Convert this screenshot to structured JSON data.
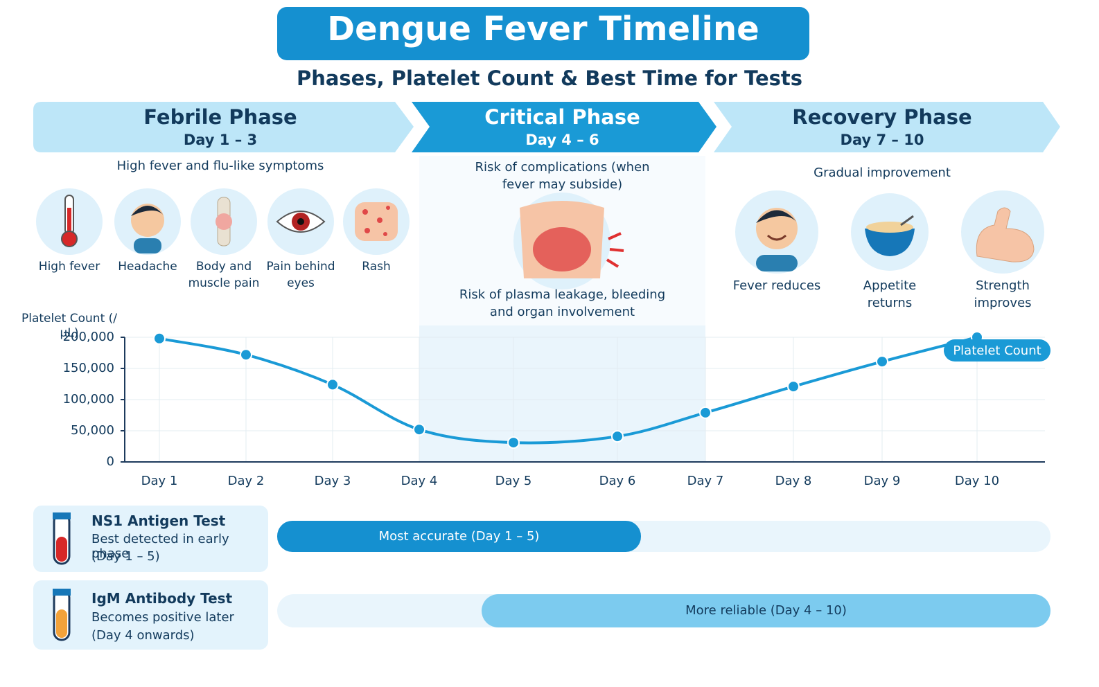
{
  "header": {
    "title": "Dengue Fever Timeline",
    "subtitle": "Phases, Platelet Count & Best Time for Tests"
  },
  "phases": [
    {
      "name": "Febrile Phase",
      "days": "Day 1 – 3",
      "description": "High fever and flu-like symptoms",
      "items": [
        "High fever",
        "Headache",
        "Body and muscle pain",
        "Pain behind eyes",
        "Rash"
      ]
    },
    {
      "name": "Critical Phase",
      "days": "Day 4 – 6",
      "description": "Risk of complications (when fever may subside)",
      "note": "Risk of plasma leakage, bleeding and organ involvement"
    },
    {
      "name": "Recovery Phase",
      "days": "Day 7 – 10",
      "description": "Gradual improvement",
      "items": [
        "Fever reduces",
        "Appetite returns",
        "Strength improves"
      ]
    }
  ],
  "chart_data": {
    "type": "line",
    "y_label": "Platelet Count (/µL)",
    "categories": [
      "Day 1",
      "Day 2",
      "Day 3",
      "Day 4",
      "Day 5",
      "Day 6",
      "Day 7",
      "Day 8",
      "Day 9",
      "Day 10"
    ],
    "series": [
      {
        "name": "Platelet Count",
        "color": "#1a9ad6",
        "values": [
          198000,
          172000,
          124000,
          52000,
          31000,
          41000,
          79000,
          121000,
          161000,
          200000
        ]
      }
    ],
    "ylim": [
      0,
      200000
    ],
    "yticks": [
      0,
      {
        "value": 50000,
        "label": "50,000"
      },
      {
        "value": 100000,
        "label": "100,000"
      },
      {
        "value": 150000,
        "label": "150,000"
      },
      {
        "value": 200000,
        "label": "200,000"
      }
    ],
    "grid": true
  },
  "tests": [
    {
      "name": "NS1 Antigen Test",
      "description": "Best detected in early phase",
      "range": "(Day 1 – 5)",
      "bar_label": "Most accurate (Day 1 – 5)"
    },
    {
      "name": "IgM Antibody Test",
      "description": "Becomes positive later",
      "range": "(Day 4 onwards)",
      "bar_label": "More reliable (Day 4 – 10)"
    }
  ]
}
